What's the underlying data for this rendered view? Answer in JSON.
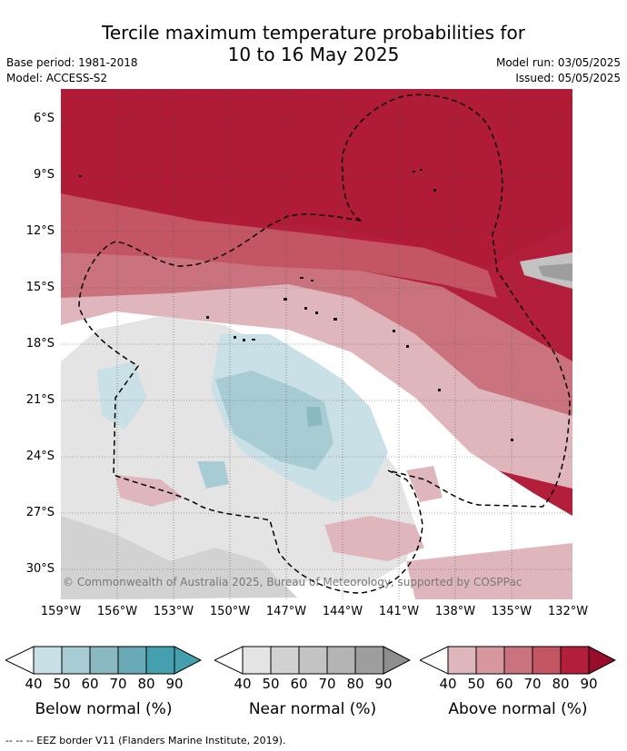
{
  "header": {
    "title_line1": "Tercile maximum temperature probabilities for",
    "title_line2": "10 to 16 May 2025",
    "base_period": "Base period: 1981-2018",
    "model": "Model: ACCESS-S2",
    "model_run": "Model run: 03/05/2025",
    "issued": "Issued: 05/05/2025"
  },
  "map": {
    "lat_labels": [
      "6°S",
      "9°S",
      "12°S",
      "15°S",
      "18°S",
      "21°S",
      "24°S",
      "27°S",
      "30°S"
    ],
    "lon_labels": [
      "159°W",
      "156°W",
      "153°W",
      "150°W",
      "147°W",
      "144°W",
      "141°W",
      "138°W",
      "135°W",
      "132°W"
    ],
    "credit": "© Commonwealth of Australia 2025, Bureau of Meteorology, supported by COSPPac",
    "colors": {
      "above": [
        "#e0b6bd",
        "#d6979f",
        "#ca737e",
        "#c45563",
        "#b31f3a",
        "#9a0c2c"
      ],
      "below": [
        "#c9e0e6",
        "#a8ccd3",
        "#8ab9c2",
        "#6aa9b6",
        "#449fae"
      ],
      "near": [
        "#e4e4e4",
        "#d2d2d2",
        "#c3c3c3",
        "#b4b4b4",
        "#9e9e9e"
      ]
    }
  },
  "legend": {
    "ticks": [
      "40",
      "50",
      "60",
      "70",
      "80",
      "90"
    ],
    "below_title": "Below normal (%)",
    "near_title": "Near normal (%)",
    "above_title": "Above normal (%)"
  },
  "footer": "--  --  -- EEZ border V11 (Flanders Marine Institute, 2019)."
}
